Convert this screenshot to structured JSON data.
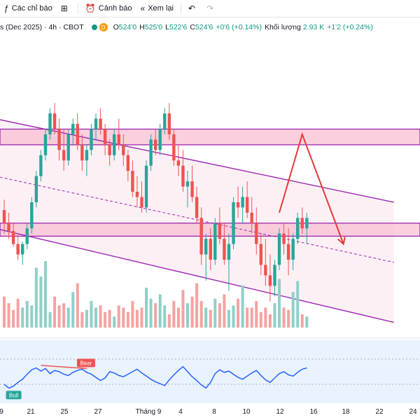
{
  "toolbar": {
    "indicators_label": "Các chỉ báo",
    "alerts_label": "Cảnh báo",
    "replay_label": "Xem lại"
  },
  "legend": {
    "symbol": "s (Dec 2025) · 4h · CBOT",
    "badge": "D",
    "open_key": "O",
    "open": "524'0",
    "high_key": "H",
    "high": "525'0",
    "low_key": "L",
    "low": "522'6",
    "close_key": "C",
    "close": "524'6",
    "change": "+0'6 (+0.14%)",
    "volume_key": "Khối lượng",
    "volume": "2.93 K",
    "volume_change": "+1'2 (+0.24%)"
  },
  "rsi_labels": {
    "bear": "Bear",
    "bull": "Bull"
  },
  "xaxis": [
    "9",
    "21",
    "25",
    "27",
    "Tháng 9",
    "4",
    "8",
    "10",
    "12",
    "16",
    "18",
    "22",
    "24"
  ],
  "colors": {
    "up": "#26a69a",
    "down": "#ef5350",
    "channel": "#9c27b0",
    "arrow": "#e53935",
    "rsi_line": "#2962ff",
    "channel_fill": "#fce4ec",
    "zone_fill": "#f8bbd0"
  },
  "chart_data": {
    "type": "candlestick",
    "candles": [
      [
        530.5,
        532.5,
        526,
        528
      ],
      [
        528,
        530,
        525,
        526.5
      ],
      [
        526.5,
        528,
        523.5,
        524
      ],
      [
        524,
        526,
        521,
        522
      ],
      [
        522,
        524.5,
        520,
        524
      ],
      [
        524,
        528,
        523,
        527
      ],
      [
        527,
        533,
        526,
        532
      ],
      [
        532,
        538,
        531,
        537
      ],
      [
        537,
        542,
        536,
        541
      ],
      [
        541,
        546,
        540,
        545
      ],
      [
        545,
        550,
        544,
        549
      ],
      [
        549,
        551,
        545,
        546
      ],
      [
        546,
        548,
        540,
        542
      ],
      [
        542,
        546,
        538,
        540
      ],
      [
        540,
        546,
        539,
        545
      ],
      [
        545,
        548,
        543,
        547
      ],
      [
        547,
        549,
        542,
        543
      ],
      [
        543,
        545,
        538,
        540
      ],
      [
        540,
        543,
        537,
        542
      ],
      [
        542,
        547,
        541,
        546
      ],
      [
        546,
        549,
        544,
        548
      ],
      [
        548,
        550,
        545,
        546
      ],
      [
        546,
        547,
        541,
        543
      ],
      [
        543,
        544,
        539,
        541
      ],
      [
        541,
        546,
        540,
        545
      ],
      [
        545,
        548,
        542,
        543
      ],
      [
        543,
        545,
        539,
        541
      ],
      [
        541,
        542,
        536,
        538
      ],
      [
        538,
        540,
        533,
        534
      ],
      [
        534,
        537,
        531,
        533
      ],
      [
        533,
        536,
        530,
        531
      ],
      [
        531,
        540,
        530,
        539
      ],
      [
        539,
        545,
        538,
        544
      ],
      [
        544,
        546,
        541,
        542
      ],
      [
        542,
        547,
        541,
        546
      ],
      [
        546,
        550,
        545,
        549
      ],
      [
        549,
        551,
        544,
        545
      ],
      [
        545,
        546,
        539,
        540
      ],
      [
        540,
        543,
        537,
        539
      ],
      [
        539,
        542,
        534,
        535
      ],
      [
        535,
        538,
        531,
        536
      ],
      [
        536,
        539,
        532,
        533
      ],
      [
        533,
        535,
        528,
        529
      ],
      [
        529,
        531,
        520,
        522
      ],
      [
        522,
        526,
        517,
        525
      ],
      [
        525,
        527,
        519,
        521
      ],
      [
        521,
        529,
        520,
        528
      ],
      [
        528,
        531,
        524,
        525
      ],
      [
        525,
        528,
        520,
        521
      ],
      [
        521,
        526,
        515,
        524
      ],
      [
        524,
        533,
        523,
        532
      ],
      [
        532,
        535,
        529,
        531
      ],
      [
        531,
        535,
        528,
        533
      ],
      [
        533,
        536,
        529,
        530
      ],
      [
        530,
        533,
        526,
        528
      ],
      [
        528,
        531,
        522,
        524
      ],
      [
        524,
        526,
        518,
        520
      ],
      [
        520,
        525,
        516,
        518
      ],
      [
        518,
        522,
        513,
        516
      ],
      [
        516,
        521,
        514,
        520
      ],
      [
        520,
        527,
        519,
        526
      ],
      [
        526,
        528,
        522,
        524
      ],
      [
        524,
        527,
        518,
        521
      ],
      [
        521,
        526,
        519,
        525
      ],
      [
        525,
        530,
        524,
        529
      ],
      [
        529,
        531,
        526,
        527
      ],
      [
        527,
        530,
        524,
        529
      ]
    ],
    "volume": [
      14,
      11,
      8,
      13,
      9,
      12,
      10,
      27,
      23,
      30,
      7,
      14,
      10,
      11,
      9,
      16,
      20,
      7,
      8,
      12,
      9,
      10,
      7,
      8,
      5,
      10,
      9,
      7,
      12,
      8,
      9,
      18,
      13,
      11,
      15,
      10,
      6,
      12,
      9,
      17,
      11,
      14,
      20,
      12,
      9,
      8,
      13,
      11,
      15,
      8,
      10,
      13,
      19,
      9,
      9,
      12,
      7,
      9,
      6,
      11,
      22,
      9,
      8,
      16,
      21,
      6,
      5
    ],
    "rsi": [
      30,
      24,
      27,
      33,
      38,
      46,
      53,
      56,
      51,
      55,
      47,
      52,
      50,
      46,
      44,
      49,
      52,
      54,
      49,
      46,
      41,
      36,
      40,
      50,
      48,
      44,
      42,
      46,
      50,
      54,
      48,
      43,
      38,
      34,
      31,
      28,
      37,
      45,
      52,
      58,
      50,
      42,
      36,
      29,
      24,
      33,
      47,
      53,
      49,
      51,
      46,
      41,
      38,
      43,
      48,
      52,
      44,
      37,
      33,
      40,
      47,
      50,
      45,
      43,
      49,
      54,
      56
    ],
    "ylim": [
      508,
      560
    ],
    "rsi_ylim": [
      0,
      100
    ],
    "channel": {
      "upper": [
        [
          -2,
          548
        ],
        [
          85,
          532
        ]
      ],
      "lower": [
        [
          -2,
          527
        ],
        [
          85,
          509
        ]
      ],
      "mid": [
        [
          -2,
          537
        ],
        [
          85,
          520.5
        ]
      ]
    },
    "zones": [
      [
        543,
        546
      ],
      [
        525.5,
        528
      ]
    ],
    "projection": [
      [
        60,
        530
      ],
      [
        65,
        545
      ],
      [
        74,
        524
      ]
    ],
    "rsi_divergence": [
      [
        8,
        60
      ],
      [
        18,
        55
      ]
    ]
  }
}
